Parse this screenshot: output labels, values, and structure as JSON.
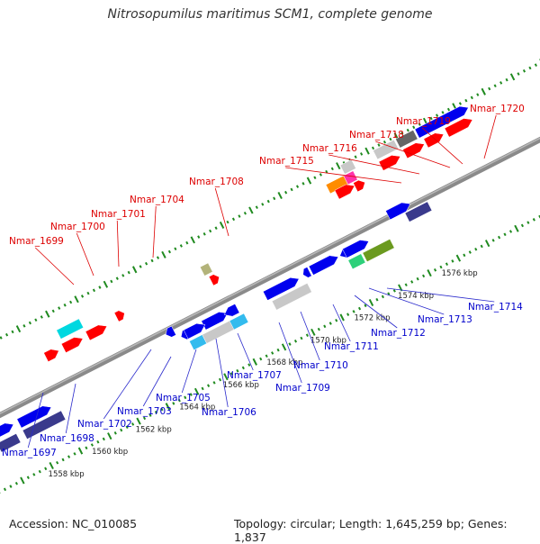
{
  "title": "Nitrosopumilus maritimus SCM1, complete genome",
  "accession": "Accession: NC_010085",
  "summary": "Topology: circular; Length: 1,645,259 bp; Genes: 1,837",
  "colors": {
    "top_label": "#dd0000",
    "bottom_label": "#0000cc",
    "backbone": "#8a8a8a",
    "tick": "#1f8a1f",
    "red": "#ff0000",
    "blue": "#0000ee",
    "navy": "#3a3a8c",
    "cyan": "#00d8e0",
    "lightblue": "#33bbee",
    "gray": "#c8c8c8",
    "darkgray": "#666666",
    "green": "#2ed07a",
    "olive": "#6b9a1f",
    "orange": "#ff8c00",
    "pink": "#ff33aa",
    "khaki": "#b3b37a"
  },
  "top_genes": [
    "Nmar_1699",
    "Nmar_1700",
    "Nmar_1701",
    "Nmar_1704",
    "Nmar_1708",
    "Nmar_1715",
    "Nmar_1716",
    "Nmar_1718",
    "Nmar_1719",
    "Nmar_1720"
  ],
  "bottom_genes": [
    "Nmar_1697",
    "Nmar_1698",
    "Nmar_1702",
    "Nmar_1703",
    "Nmar_1705",
    "Nmar_1706",
    "Nmar_1707",
    "Nmar_1709",
    "Nmar_1710",
    "Nmar_1711",
    "Nmar_1712",
    "Nmar_1713",
    "Nmar_1714"
  ],
  "kbp_ticks": [
    "1558 kbp",
    "1560 kbp",
    "1562 kbp",
    "1564 kbp",
    "1566 kbp",
    "1568 kbp",
    "1570 kbp",
    "1572 kbp",
    "1574 kbp",
    "1576 kbp"
  ]
}
